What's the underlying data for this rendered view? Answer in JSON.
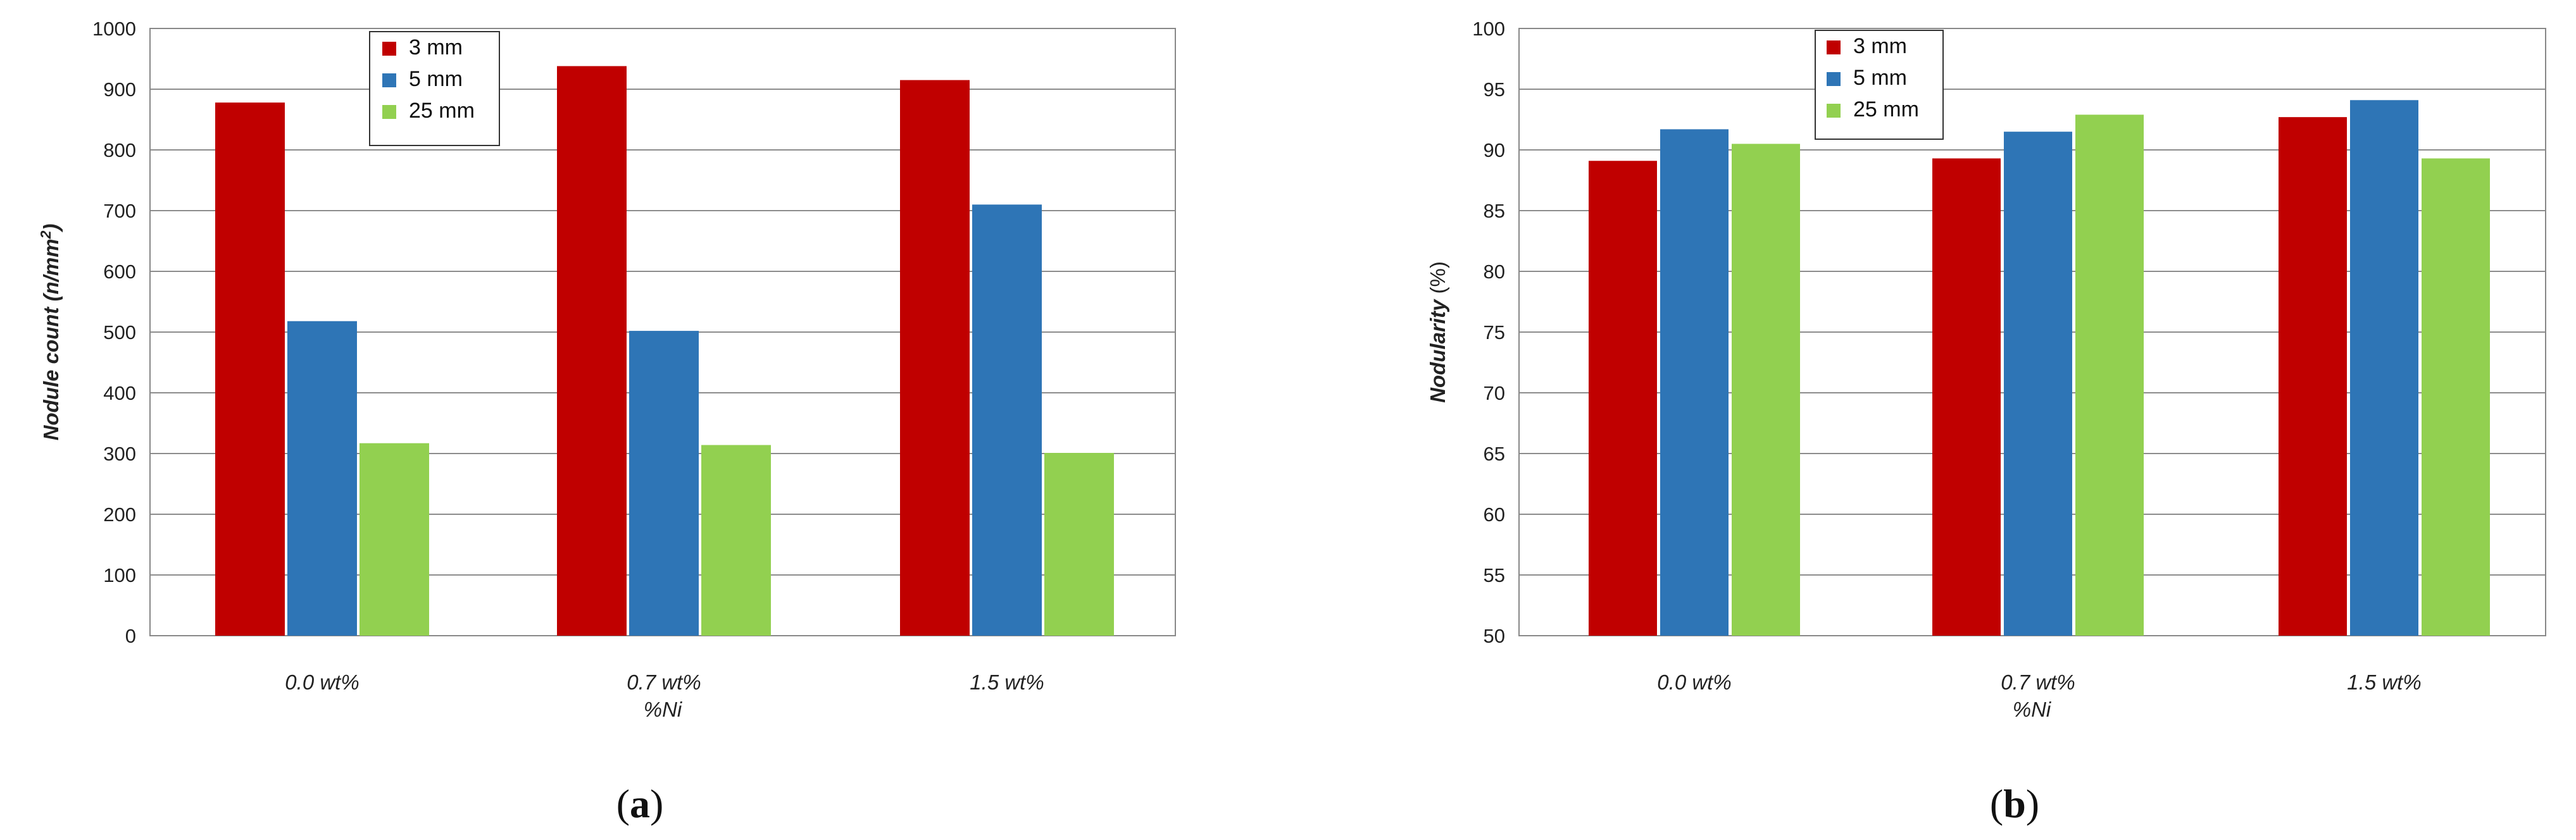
{
  "chart_data": [
    {
      "type": "bar",
      "panel_label": "a",
      "categories": [
        "0.0 wt%",
        "0.7 wt%",
        "1.5 wt%"
      ],
      "xlabel": "%Ni",
      "ylabel": "Nodule count (n/mm²)",
      "ylim": [
        0,
        1000
      ],
      "yticks": [
        "0",
        "100",
        "200",
        "300",
        "400",
        "500",
        "600",
        "700",
        "800",
        "900",
        "1000"
      ],
      "grid": true,
      "legend_position": "top-center",
      "series": [
        {
          "name": "3 mm",
          "color": "#c00000",
          "values": [
            878,
            938,
            915
          ]
        },
        {
          "name": "5 mm",
          "color": "#2e75b6",
          "values": [
            518,
            502,
            710
          ]
        },
        {
          "name": "25 mm",
          "color": "#92d050",
          "values": [
            317,
            314,
            301
          ]
        }
      ]
    },
    {
      "type": "bar",
      "panel_label": "b",
      "categories": [
        "0.0 wt%",
        "0.7 wt%",
        "1.5 wt%"
      ],
      "xlabel": "%Ni",
      "ylabel": "Nodularity (%)",
      "ylim": [
        50,
        100
      ],
      "yticks": [
        "50",
        "55",
        "60",
        "65",
        "70",
        "75",
        "80",
        "85",
        "90",
        "95",
        "100"
      ],
      "grid": true,
      "legend_position": "top-center",
      "series": [
        {
          "name": "3 mm",
          "color": "#c00000",
          "values": [
            89.1,
            89.3,
            92.7
          ]
        },
        {
          "name": "5 mm",
          "color": "#2e75b6",
          "values": [
            91.7,
            91.5,
            94.1
          ]
        },
        {
          "name": "25 mm",
          "color": "#92d050",
          "values": [
            90.5,
            92.9,
            89.3
          ]
        }
      ]
    }
  ]
}
